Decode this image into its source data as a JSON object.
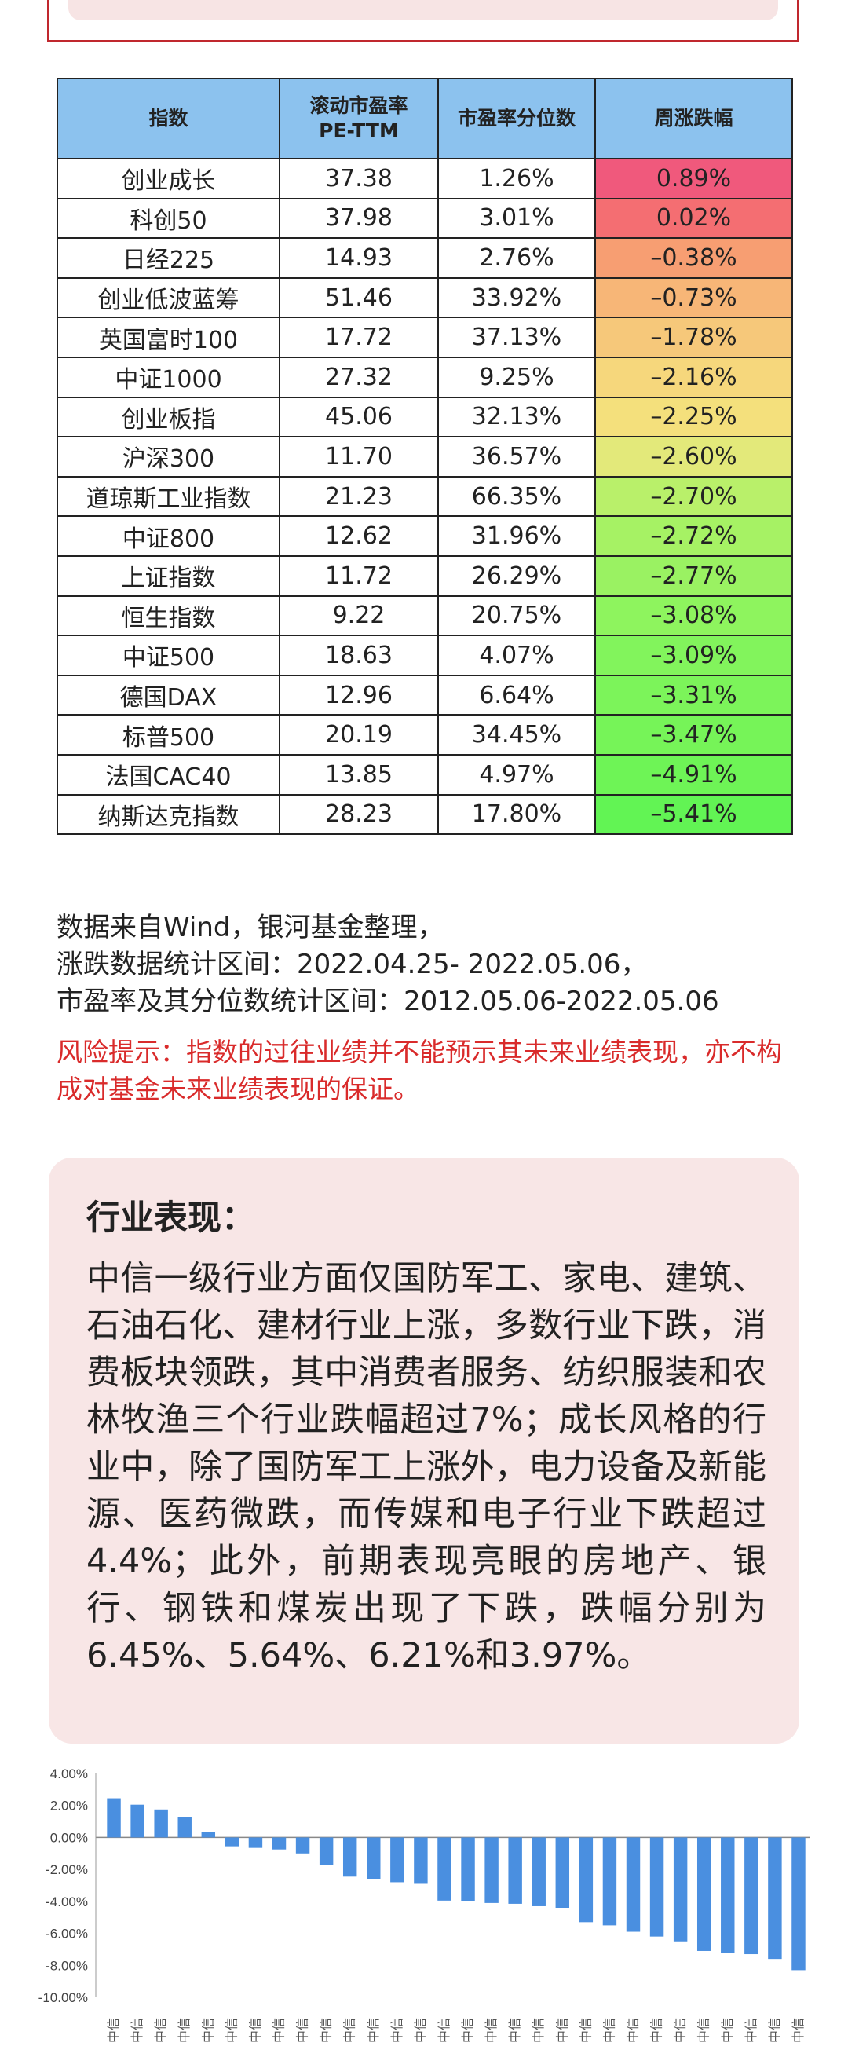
{
  "table": {
    "headers": [
      "指数",
      "滚动市盈率\nPE-TTM",
      "市盈率分位数",
      "周涨跌幅"
    ],
    "rows": [
      {
        "name": "创业成长",
        "pe": "37.38",
        "pct": "1.26%",
        "chg": "0.89%",
        "color": "#f0597c"
      },
      {
        "name": "科创50",
        "pe": "37.98",
        "pct": "3.01%",
        "chg": "0.02%",
        "color": "#f46e72"
      },
      {
        "name": "日经225",
        "pe": "14.93",
        "pct": "2.76%",
        "chg": "–0.38%",
        "color": "#f79e72"
      },
      {
        "name": "创业低波蓝筹",
        "pe": "51.46",
        "pct": "33.92%",
        "chg": "–0.73%",
        "color": "#f7b677"
      },
      {
        "name": "英国富时100",
        "pe": "17.72",
        "pct": "37.13%",
        "chg": "–1.78%",
        "color": "#f6c87a"
      },
      {
        "name": "中证1000",
        "pe": "27.32",
        "pct": "9.25%",
        "chg": "–2.16%",
        "color": "#f6d77c"
      },
      {
        "name": "创业板指",
        "pe": "45.06",
        "pct": "32.13%",
        "chg": "–2.25%",
        "color": "#f4e07c"
      },
      {
        "name": "沪深300",
        "pe": "11.70",
        "pct": "36.57%",
        "chg": "–2.60%",
        "color": "#e3e97a"
      },
      {
        "name": "道琼斯工业指数",
        "pe": "21.23",
        "pct": "66.35%",
        "chg": "–2.70%",
        "color": "#b9f06a"
      },
      {
        "name": "中证800",
        "pe": "12.62",
        "pct": "31.96%",
        "chg": "–2.72%",
        "color": "#a6f264"
      },
      {
        "name": "上证指数",
        "pe": "11.72",
        "pct": "26.29%",
        "chg": "–2.77%",
        "color": "#9af262"
      },
      {
        "name": "恒生指数",
        "pe": "9.22",
        "pct": "20.75%",
        "chg": "–3.08%",
        "color": "#8ef45e"
      },
      {
        "name": "中证500",
        "pe": "18.63",
        "pct": "4.07%",
        "chg": "–3.09%",
        "color": "#82f45c"
      },
      {
        "name": "德国DAX",
        "pe": "12.96",
        "pct": "6.64%",
        "chg": "–3.31%",
        "color": "#7cf45a"
      },
      {
        "name": "标普500",
        "pe": "20.19",
        "pct": "34.45%",
        "chg": "–3.47%",
        "color": "#76f458"
      },
      {
        "name": "法国CAC40",
        "pe": "13.85",
        "pct": "4.97%",
        "chg": "–4.91%",
        "color": "#6ef456"
      },
      {
        "name": "纳斯达克指数",
        "pe": "28.23",
        "pct": "17.80%",
        "chg": "–5.41%",
        "color": "#62f454"
      }
    ]
  },
  "notes": {
    "line1": "数据来自Wind，银河基金整理，",
    "line2": "涨跌数据统计区间：2022.04.25- 2022.05.06，",
    "line3": "市盈率及其分位数统计区间：2012.05.06-2022.05.06",
    "risk": "风险提示：指数的过往业绩并不能预示其未来业绩表现，亦不构成对基金未来业绩表现的保证。"
  },
  "card": {
    "title": "行业表现：",
    "body": "中信一级行业方面仅国防军工、家电、建筑、石油石化、建材行业上涨，多数行业下跌，消费板块领跌，其中消费者服务、纺织服装和农林牧渔三个行业跌幅超过7%；成长风格的行业中，除了国防军工上涨外，电力设备及新能源、医药微跌，而传媒和电子行业下跌超过4.4%；此外，前期表现亮眼的房地产、银行、钢铁和煤炭出现了下跌，跌幅分别为6.45%、5.64%、6.21%和3.97%。"
  },
  "chart_data": {
    "type": "bar",
    "ylim": [
      -10,
      4
    ],
    "yticks": [
      "4.00%",
      "2.00%",
      "0.00%",
      "-2.00%",
      "-4.00%",
      "-6.00%",
      "-8.00%",
      "-10.00%"
    ],
    "bar_color": "#4a8fe0",
    "category_prefix": "中信",
    "values": [
      2.45,
      2.05,
      1.75,
      1.25,
      0.35,
      -0.55,
      -0.65,
      -0.75,
      -1.0,
      -1.7,
      -2.45,
      -2.6,
      -2.8,
      -2.9,
      -3.95,
      -4.0,
      -4.1,
      -4.15,
      -4.3,
      -4.4,
      -5.3,
      -5.5,
      -5.9,
      -6.2,
      -6.5,
      -7.1,
      -7.2,
      -7.3,
      -7.6,
      -8.3
    ]
  }
}
